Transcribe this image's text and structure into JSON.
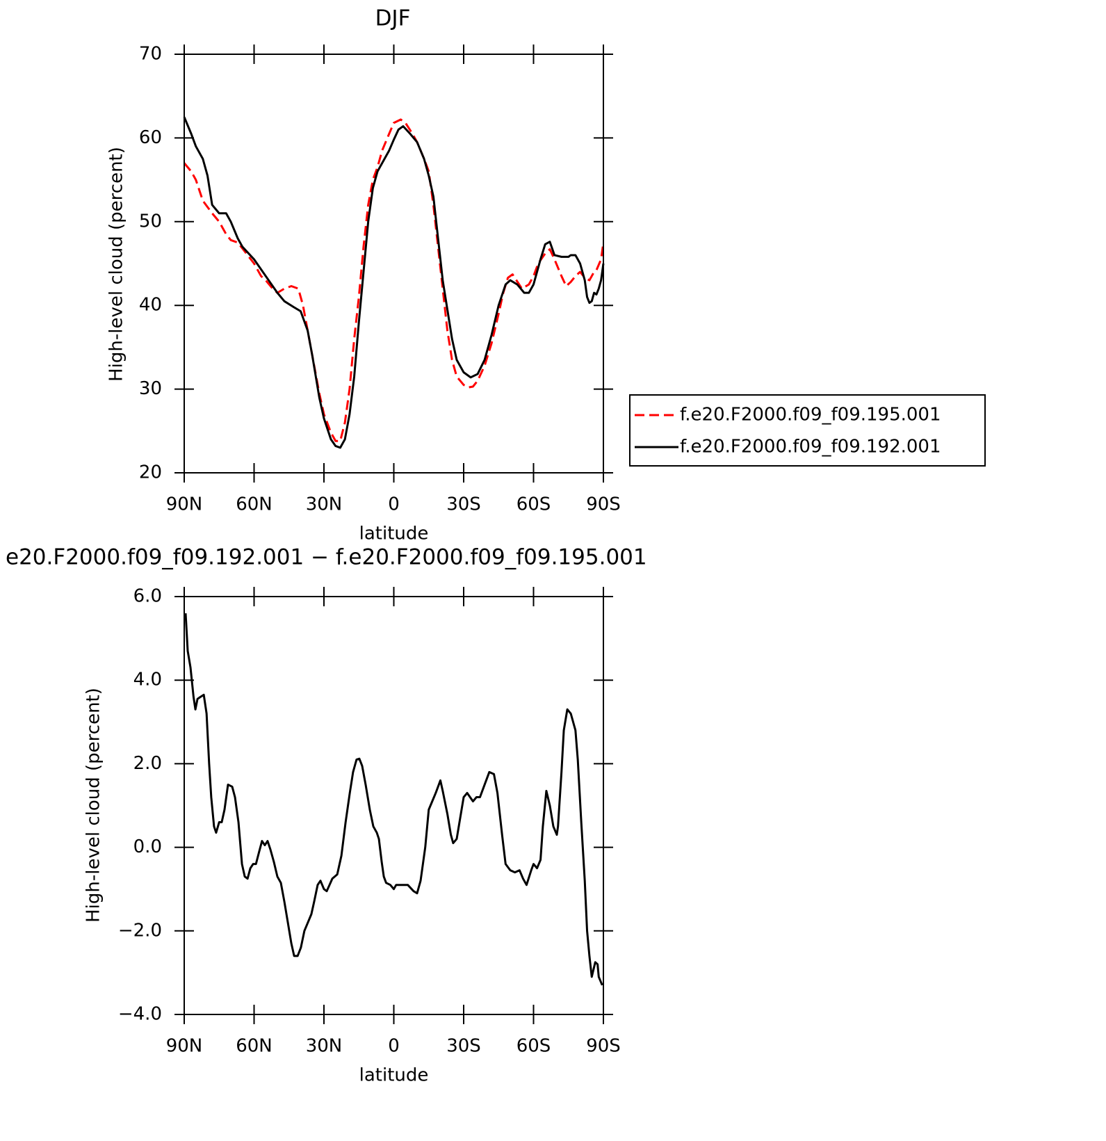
{
  "chart_data": [
    {
      "type": "line",
      "title": "DJF",
      "xlabel": "latitude",
      "ylabel": "High-level cloud (percent)",
      "xlim": [
        90,
        -90
      ],
      "xticks": [
        {
          "value": 90,
          "label": "90N"
        },
        {
          "value": 60,
          "label": "60N"
        },
        {
          "value": 30,
          "label": "30N"
        },
        0,
        {
          "value": -30,
          "label": "30S"
        },
        {
          "value": -60,
          "label": "60S"
        },
        {
          "value": -90,
          "label": "90S"
        }
      ],
      "ylim": [
        20,
        70
      ],
      "yticks": [
        20,
        30,
        40,
        50,
        60,
        70
      ],
      "legend": "outside-right",
      "series": [
        {
          "name": "f.e20.F2000.f09_f09.195.001",
          "color": "#ff0000",
          "dashed": true,
          "x": [
            90,
            87,
            85,
            82,
            78,
            75,
            72,
            70,
            67,
            65,
            60,
            57,
            55,
            52,
            50,
            47,
            44,
            41,
            39,
            37,
            35,
            32,
            30,
            27,
            25,
            23,
            21,
            19,
            17,
            15,
            13,
            11,
            9,
            7,
            5,
            2,
            0,
            -3,
            -5,
            -8,
            -10,
            -13,
            -15,
            -17,
            -19,
            -21,
            -23,
            -25,
            -27,
            -30,
            -32,
            -34,
            -36,
            -39,
            -42,
            -45,
            -47,
            -49,
            -51,
            -55,
            -58,
            -60,
            -62,
            -65,
            -67,
            -69,
            -72,
            -74,
            -76,
            -78,
            -80,
            -82,
            -84,
            -86,
            -87,
            -89,
            -90
          ],
          "values": [
            57,
            56,
            55,
            52.5,
            51,
            50,
            48.5,
            47.8,
            47.5,
            46.8,
            45,
            43.5,
            43,
            42,
            41.5,
            42,
            42.3,
            42,
            40,
            37,
            34,
            29.5,
            27,
            24.8,
            23.8,
            23.8,
            26,
            30,
            36,
            41,
            47,
            52,
            55,
            56.5,
            58.5,
            60.5,
            61.8,
            62.2,
            61.8,
            60.5,
            59.5,
            57.5,
            56,
            52,
            47,
            42,
            37,
            33.5,
            31.5,
            30.5,
            30.2,
            30.3,
            31,
            32.8,
            35.5,
            39,
            41.5,
            43.3,
            43.7,
            42,
            42.5,
            43.5,
            45,
            46.2,
            46.7,
            45.5,
            43.5,
            42.3,
            42.8,
            43.5,
            44,
            43.3,
            43,
            44,
            44.2,
            45.5,
            47.5
          ]
        },
        {
          "name": "f.e20.F2000.f09_f09.192.001",
          "color": "#000000",
          "dashed": false,
          "x": [
            90,
            87,
            85,
            82,
            80,
            78,
            75,
            72,
            70,
            67,
            65,
            60,
            55,
            50,
            47,
            43,
            40,
            37,
            35,
            32,
            30,
            27,
            25,
            23,
            21,
            19,
            17,
            15,
            13,
            11,
            9,
            7,
            4,
            2,
            0,
            -2,
            -4,
            -7,
            -10,
            -13,
            -15,
            -17,
            -19,
            -21,
            -23,
            -25,
            -27,
            -30,
            -33,
            -36,
            -39,
            -42,
            -45,
            -48,
            -50,
            -53,
            -56,
            -58,
            -60,
            -63,
            -65,
            -67,
            -69,
            -72,
            -75,
            -76,
            -78,
            -80,
            -82,
            -83,
            -84,
            -85,
            -86,
            -87,
            -88,
            -89,
            -90
          ],
          "values": [
            62.5,
            60.5,
            59,
            57.5,
            55.5,
            52,
            51,
            51,
            50,
            48,
            47,
            45.5,
            43.5,
            41.5,
            40.5,
            39.8,
            39.3,
            37,
            34,
            29,
            26.5,
            24,
            23.2,
            23,
            24,
            27,
            31.5,
            38,
            44,
            50,
            54,
            56,
            57.5,
            58.5,
            59.8,
            61,
            61.4,
            60.5,
            59.5,
            57.5,
            55.5,
            53,
            48,
            43,
            39.5,
            36,
            33.5,
            32,
            31.4,
            31.8,
            33.5,
            36.5,
            40,
            42.5,
            43,
            42.5,
            41.5,
            41.5,
            42.5,
            45.5,
            47.3,
            47.6,
            46,
            45.8,
            45.8,
            46,
            46,
            45,
            43,
            41,
            40.3,
            40.5,
            41.5,
            41.3,
            42,
            43,
            45
          ]
        }
      ]
    },
    {
      "type": "line",
      "title": "e20.F2000.f09_f09.192.001 − f.e20.F2000.f09_f09.195.001",
      "xlabel": "latitude",
      "ylabel": "High-level cloud (percent)",
      "xlim": [
        90,
        -90
      ],
      "xticks": [
        {
          "value": 90,
          "label": "90N"
        },
        {
          "value": 60,
          "label": "60N"
        },
        {
          "value": 30,
          "label": "30N"
        },
        0,
        {
          "value": -30,
          "label": "30S"
        },
        {
          "value": -60,
          "label": "60S"
        },
        {
          "value": -90,
          "label": "90S"
        }
      ],
      "ylim": [
        -4,
        6
      ],
      "yticks": [
        {
          "value": -4,
          "label": "−4.0"
        },
        {
          "value": -2,
          "label": "−2.0"
        },
        {
          "value": 0,
          "label": "0.0"
        },
        {
          "value": 2,
          "label": "2.0"
        },
        {
          "value": 4,
          "label": "4.0"
        },
        {
          "value": 6,
          "label": "6.0"
        }
      ],
      "series": [
        {
          "color": "#000000",
          "dashed": false,
          "x": [
            89.4,
            88.5,
            87.3,
            86,
            85.2,
            84.3,
            83,
            81.6,
            80.4,
            79.3,
            78.4,
            77.2,
            76.3,
            75,
            73.9,
            72.7,
            71.2,
            69.4,
            68.2,
            66.7,
            65.2,
            64,
            62.8,
            61.6,
            60.4,
            59.2,
            57.8,
            56.6,
            55.4,
            54.2,
            53,
            51.5,
            50,
            48.5,
            47,
            45.5,
            44,
            42.8,
            41.3,
            39.9,
            38.4,
            36.9,
            35.4,
            34.2,
            32.7,
            31.5,
            30,
            28.8,
            27.6,
            26.4,
            24.3,
            22.5,
            20.7,
            18.9,
            17.5,
            16,
            14.8,
            13.6,
            12.1,
            10.3,
            8.8,
            7.3,
            6.4,
            5.2,
            4.3,
            3.3,
            1.5,
            0,
            -1,
            -4,
            -6,
            -8.5,
            -10,
            -11.5,
            -13.5,
            -15,
            -16.5,
            -18,
            -20,
            -21,
            -23,
            -24.5,
            -25.5,
            -27,
            -28.5,
            -30,
            -31.5,
            -34,
            -35.5,
            -37,
            -39,
            -41,
            -43,
            -44.5,
            -46.5,
            -48,
            -50,
            -52,
            -54,
            -55.5,
            -57,
            -59,
            -60,
            -61.5,
            -63,
            -64,
            -65.5,
            -67,
            -68.5,
            -70,
            -70.5,
            -72,
            -73,
            -74.5,
            -76,
            -78,
            -79,
            -80.5,
            -82,
            -83,
            -84,
            -85,
            -86.5,
            -87.5,
            -88,
            -89.5
          ],
          "values": [
            5.6,
            4.7,
            4.3,
            3.6,
            3.3,
            3.55,
            3.6,
            3.65,
            3.2,
            2.0,
            1.2,
            0.5,
            0.35,
            0.6,
            0.6,
            0.9,
            1.5,
            1.45,
            1.2,
            0.6,
            -0.4,
            -0.7,
            -0.75,
            -0.5,
            -0.4,
            -0.4,
            -0.1,
            0.15,
            0.05,
            0.15,
            -0.05,
            -0.35,
            -0.7,
            -0.85,
            -1.3,
            -1.8,
            -2.3,
            -2.6,
            -2.6,
            -2.4,
            -2.0,
            -1.8,
            -1.6,
            -1.3,
            -0.9,
            -0.8,
            -1.0,
            -1.05,
            -0.9,
            -0.75,
            -0.65,
            -0.2,
            0.6,
            1.3,
            1.8,
            2.1,
            2.12,
            1.95,
            1.5,
            0.9,
            0.5,
            0.35,
            0.2,
            -0.35,
            -0.7,
            -0.85,
            -0.9,
            -1.0,
            -0.9,
            -0.9,
            -0.9,
            -1.05,
            -1.1,
            -0.8,
            0.0,
            0.9,
            1.1,
            1.3,
            1.6,
            1.35,
            0.8,
            0.3,
            0.1,
            0.2,
            0.7,
            1.2,
            1.3,
            1.1,
            1.2,
            1.2,
            1.5,
            1.8,
            1.75,
            1.3,
            0.3,
            -0.4,
            -0.55,
            -0.6,
            -0.55,
            -0.75,
            -0.9,
            -0.55,
            -0.4,
            -0.5,
            -0.3,
            0.5,
            1.35,
            1.0,
            0.5,
            0.3,
            0.5,
            1.8,
            2.8,
            3.3,
            3.2,
            2.8,
            2.1,
            0.6,
            -0.8,
            -2.0,
            -2.6,
            -3.1,
            -2.75,
            -2.8,
            -3.1,
            -3.3
          ]
        }
      ]
    }
  ]
}
